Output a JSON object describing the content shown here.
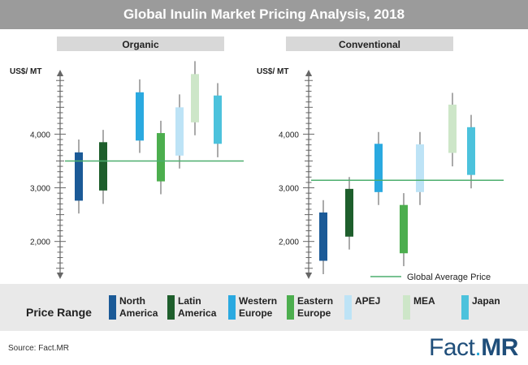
{
  "title": "Global Inulin Market Pricing Analysis, 2018",
  "source": "Source: Fact.MR",
  "logo": {
    "text_a": "Fact",
    "dot": ".",
    "text_b": "MR"
  },
  "colors": {
    "North America": "#1b5a97",
    "Latin America": "#1e5e2c",
    "Western Europe": "#2aa9e0",
    "Eastern Europe": "#4cae4e",
    "APEJ": "#bde3f6",
    "MEA": "#cde6c8",
    "Japan": "#4cc2dc",
    "average_line": "#4cae6e",
    "axis": "#666666",
    "panel_header": "#d8d8d8"
  },
  "legend": {
    "title": "Price Range",
    "items": [
      {
        "name": "North America",
        "lines": [
          "North",
          "America"
        ]
      },
      {
        "name": "Latin America",
        "lines": [
          "Latin",
          "America"
        ]
      },
      {
        "name": "Western Europe",
        "lines": [
          "Western",
          "Europe"
        ]
      },
      {
        "name": "Eastern Europe",
        "lines": [
          "Eastern",
          "Europe"
        ]
      },
      {
        "name": "APEJ",
        "lines": [
          "APEJ"
        ]
      },
      {
        "name": "MEA",
        "lines": [
          "MEA"
        ]
      },
      {
        "name": "Japan",
        "lines": [
          "Japan"
        ]
      }
    ]
  },
  "chart_data": [
    {
      "type": "candlestick",
      "title": "Organic",
      "ylabel": "US$/ MT",
      "ylim": [
        1300,
        5200
      ],
      "yticks": [
        2000,
        3000,
        4000
      ],
      "ytick_labels": [
        "2,000",
        "3,000",
        "4,000"
      ],
      "average_price": 3500,
      "series": [
        {
          "name": "North America",
          "low": 2520,
          "open": 2760,
          "close": 3660,
          "high": 3900
        },
        {
          "name": "Latin America",
          "low": 2700,
          "open": 2950,
          "close": 3850,
          "high": 4080
        },
        {
          "name": "Western Europe",
          "low": 3650,
          "open": 3880,
          "close": 4780,
          "high": 5020
        },
        {
          "name": "Eastern Europe",
          "low": 2880,
          "open": 3120,
          "close": 4020,
          "high": 4250
        },
        {
          "name": "APEJ",
          "low": 3360,
          "open": 3600,
          "close": 4500,
          "high": 4740
        },
        {
          "name": "MEA",
          "low": 3980,
          "open": 4220,
          "close": 5120,
          "high": 5360
        },
        {
          "name": "Japan",
          "low": 3570,
          "open": 3820,
          "close": 4720,
          "high": 4950
        }
      ]
    },
    {
      "type": "candlestick",
      "title": "Conventional",
      "ylabel": "US$/ MT",
      "ylim": [
        1300,
        5200
      ],
      "yticks": [
        2000,
        3000,
        4000
      ],
      "ytick_labels": [
        "2,000",
        "3,000",
        "4,000"
      ],
      "average_price": 3140,
      "average_label": "Global Average Price",
      "series": [
        {
          "name": "North America",
          "low": 1390,
          "open": 1640,
          "close": 2540,
          "high": 2770
        },
        {
          "name": "Latin America",
          "low": 1850,
          "open": 2090,
          "close": 2980,
          "high": 3200
        },
        {
          "name": "Western Europe",
          "low": 2680,
          "open": 2920,
          "close": 3820,
          "high": 4040
        },
        {
          "name": "Eastern Europe",
          "low": 1540,
          "open": 1780,
          "close": 2680,
          "high": 2900
        },
        {
          "name": "APEJ",
          "low": 2680,
          "open": 2920,
          "close": 3810,
          "high": 4040
        },
        {
          "name": "MEA",
          "low": 3400,
          "open": 3650,
          "close": 4550,
          "high": 4770
        },
        {
          "name": "Japan",
          "low": 2990,
          "open": 3240,
          "close": 4130,
          "high": 4360
        }
      ]
    }
  ]
}
